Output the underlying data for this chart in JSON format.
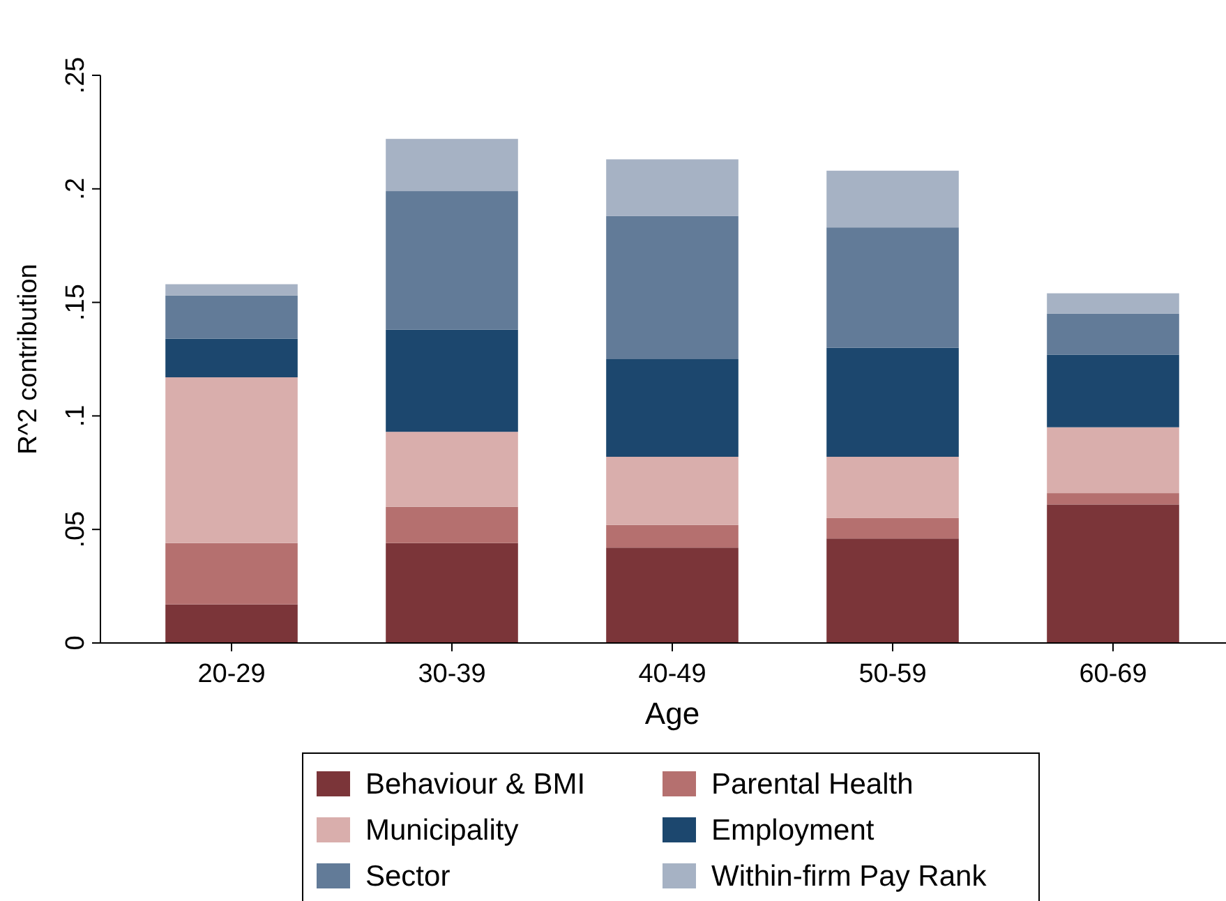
{
  "chart_data": {
    "type": "bar",
    "stacked": true,
    "xlabel": "Age",
    "ylabel": "R^2 contribution",
    "categories": [
      "20-29",
      "30-39",
      "40-49",
      "50-59",
      "60-69"
    ],
    "ylim": [
      0,
      0.25
    ],
    "yticks": [
      {
        "value": 0,
        "label": "0"
      },
      {
        "value": 0.05,
        "label": ".05"
      },
      {
        "value": 0.1,
        "label": ".1"
      },
      {
        "value": 0.15,
        "label": ".15"
      },
      {
        "value": 0.2,
        "label": ".2"
      },
      {
        "value": 0.25,
        "label": ".25"
      }
    ],
    "grid": false,
    "legend": "bottom",
    "series": [
      {
        "name": "Behaviour & BMI",
        "color": "#7b3539",
        "values": [
          0.017,
          0.044,
          0.042,
          0.046,
          0.061
        ]
      },
      {
        "name": "Parental Health",
        "color": "#b5706f",
        "values": [
          0.027,
          0.016,
          0.01,
          0.009,
          0.005
        ]
      },
      {
        "name": "Municipality",
        "color": "#d9aeac",
        "values": [
          0.073,
          0.033,
          0.03,
          0.027,
          0.029
        ]
      },
      {
        "name": "Employment",
        "color": "#1c476e",
        "values": [
          0.017,
          0.045,
          0.043,
          0.048,
          0.032
        ]
      },
      {
        "name": "Sector",
        "color": "#627b98",
        "values": [
          0.019,
          0.061,
          0.063,
          0.053,
          0.018
        ]
      },
      {
        "name": "Within-firm Pay Rank",
        "color": "#a6b2c4",
        "values": [
          0.005,
          0.023,
          0.025,
          0.025,
          0.009
        ]
      }
    ]
  }
}
